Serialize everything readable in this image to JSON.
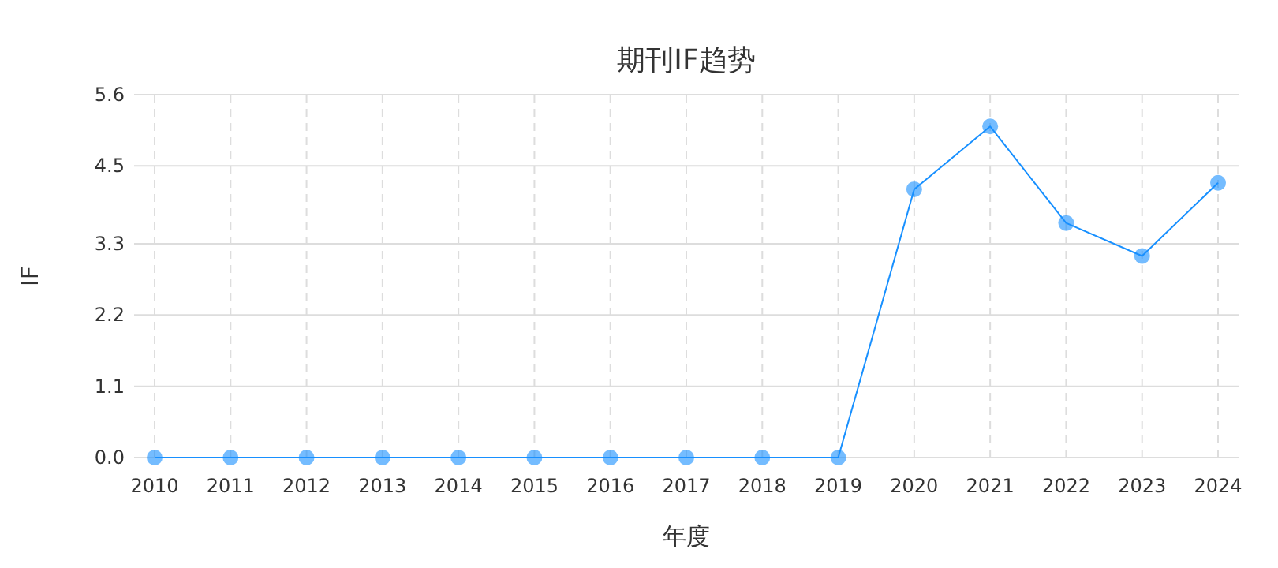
{
  "chart_data": {
    "type": "line",
    "title": "期刊IF趋势",
    "xlabel": "年度",
    "ylabel": "IF",
    "categories": [
      "2010",
      "2011",
      "2012",
      "2013",
      "2014",
      "2015",
      "2016",
      "2017",
      "2018",
      "2019",
      "2020",
      "2021",
      "2022",
      "2023",
      "2024"
    ],
    "series": [
      {
        "color": "#1890ff",
        "values": [
          0,
          0,
          0,
          0,
          0,
          0,
          0,
          0,
          0,
          0,
          4.14,
          5.11,
          3.62,
          3.11,
          4.24
        ]
      }
    ],
    "ylim": [
      0,
      5.6
    ],
    "yticks": [
      {
        "value": 0,
        "label": "0.0"
      },
      1.1,
      2.2,
      3.3,
      4.5,
      5.6
    ],
    "grid": true,
    "marker": "circle",
    "line_style": "solid"
  }
}
